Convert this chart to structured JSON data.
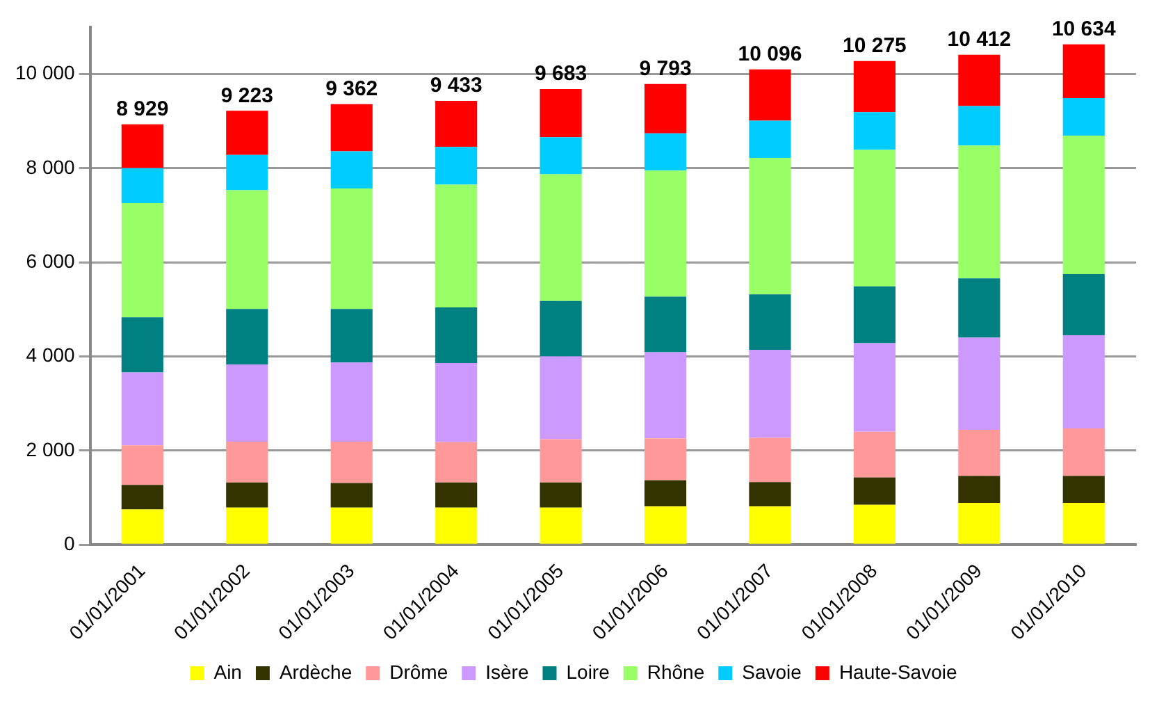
{
  "chart_data": {
    "type": "bar",
    "stacked": true,
    "categories": [
      "01/01/2001",
      "01/01/2002",
      "01/01/2003",
      "01/01/2004",
      "01/01/2005",
      "01/01/2006",
      "01/01/2007",
      "01/01/2008",
      "01/01/2009",
      "01/01/2010"
    ],
    "series": [
      {
        "name": "Ain",
        "color": "#ffff00",
        "values": [
          750,
          790,
          790,
          790,
          790,
          810,
          810,
          850,
          890,
          890
        ]
      },
      {
        "name": "Ardèche",
        "color": "#333300",
        "values": [
          520,
          530,
          520,
          530,
          530,
          560,
          520,
          580,
          570,
          570
        ]
      },
      {
        "name": "Drôme",
        "color": "#ff9999",
        "values": [
          840,
          870,
          880,
          860,
          920,
          890,
          940,
          970,
          980,
          1010
        ]
      },
      {
        "name": "Isère",
        "color": "#cc99ff",
        "values": [
          1550,
          1640,
          1680,
          1680,
          1760,
          1830,
          1870,
          1880,
          1960,
          1980
        ]
      },
      {
        "name": "Loire",
        "color": "#008080",
        "values": [
          1170,
          1180,
          1140,
          1180,
          1180,
          1180,
          1180,
          1210,
          1260,
          1300
        ]
      },
      {
        "name": "Rhône",
        "color": "#99ff66",
        "values": [
          2430,
          2520,
          2560,
          2610,
          2690,
          2680,
          2900,
          2900,
          2820,
          2940
        ]
      },
      {
        "name": "Savoie",
        "color": "#00ccff",
        "values": [
          740,
          750,
          790,
          800,
          790,
          790,
          790,
          800,
          840,
          800
        ]
      },
      {
        "name": "Haute-Savoie",
        "color": "#ff0000",
        "values": [
          930,
          940,
          1000,
          980,
          1020,
          1050,
          1090,
          1085,
          1090,
          1140
        ]
      }
    ],
    "totals": [
      "8 929",
      "9 223",
      "9 362",
      "9 433",
      "9 683",
      "9 793",
      "10 096",
      "10 275",
      "10 412",
      "10 634"
    ],
    "ylim": [
      0,
      11000
    ],
    "yticks": [
      0,
      {
        "value": 2000,
        "label": "2 000"
      },
      {
        "value": 4000,
        "label": "4 000"
      },
      {
        "value": 6000,
        "label": "6 000"
      },
      {
        "value": 8000,
        "label": "8 000"
      },
      {
        "value": 10000,
        "label": "10 000"
      }
    ],
    "grid": "y",
    "legend": "bottom"
  }
}
